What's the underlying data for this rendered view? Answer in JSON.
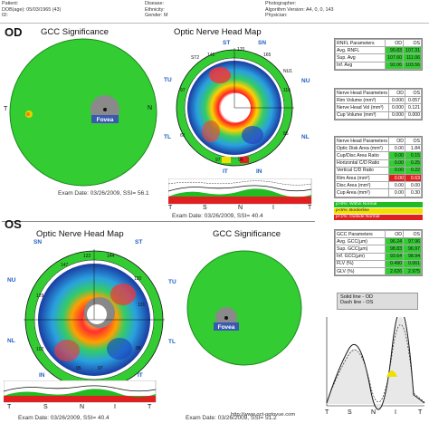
{
  "header": {
    "patient": "Patient:",
    "dob": "DOB(age): 05/03/1965 (43)",
    "id": "ID:",
    "disease": "Disease:",
    "ethnicity": "Ethnicity:",
    "gender": "Gender: M",
    "photographer": "Photographer:",
    "algorithm": "Algorithm Version: A4, 0, 0, 143",
    "physician": "Physician:"
  },
  "od": {
    "eye_label": "OD",
    "gcc_title": "GCC Significance",
    "onh_title": "Optic Nerve Head Map",
    "exam_date": "Exam Date: 03/26/2009, SSI= 56.1",
    "exam_date_map": "Exam Date: 03/26/2009, SSI= 40.4",
    "fovea": "Fovea",
    "orient_t": "T",
    "orient_n": "N",
    "sector_labels": [
      "ST",
      "S",
      "SN",
      "ST2",
      "SN1",
      "NU1",
      "NU2",
      "TU",
      "TU1",
      "TU2",
      "TL2",
      "NL1",
      "NL2",
      "IT1",
      "IN1",
      "IN",
      "IT",
      "TL1",
      "TL"
    ],
    "sector_values": [
      "141",
      "170",
      "165",
      "121",
      "124",
      "116",
      "97",
      "94",
      "61",
      "85",
      "109",
      "85",
      "87",
      "97",
      "80",
      "115"
    ],
    "quadrants": [
      "ST",
      "SN",
      "TU",
      "NU",
      "TL",
      "NL",
      "IT",
      "IN"
    ],
    "graph_axis": [
      "T",
      "S",
      "N",
      "I",
      "T"
    ]
  },
  "os": {
    "eye_label": "OS",
    "onh_title": "Optic Nerve Head Map",
    "gcc_title": "GCC Significance",
    "exam_date": "Exam Date: 03/26/2009, SSI= 40.4",
    "exam_date_gcc": "Exam Date: 03/26/2009, SSI= 51.2",
    "fovea": "Fovea",
    "sector_labels": [
      "SN",
      "SN1",
      "ST1",
      "ST",
      "NU",
      "NU1",
      "NU2",
      "TU",
      "TU1",
      "NL",
      "NL1",
      "TL",
      "IN1",
      "IN",
      "IT1",
      "IT"
    ],
    "sector_values": [
      "122",
      "144",
      "147",
      "120",
      "125",
      "129",
      "116",
      "131",
      "122",
      "102",
      "81",
      "88",
      "95",
      "97",
      "166"
    ],
    "quadrants": [
      "SN",
      "ST",
      "NU",
      "TU",
      "NL",
      "TL",
      "IN",
      "IT"
    ],
    "graph_axis": [
      "T",
      "S",
      "N",
      "I",
      "T"
    ]
  },
  "rnfl_table": {
    "headers": [
      "RNFL Parameters",
      "OD",
      "OS"
    ],
    "rows": [
      {
        "label": "Avg. RNFL",
        "od": "99.83",
        "os": "107.31"
      },
      {
        "label": "Sup. Avg",
        "od": "107.60",
        "os": "111.06"
      },
      {
        "label": "Inf. Avg",
        "od": "92.06",
        "os": "103.56"
      }
    ]
  },
  "nh_table": {
    "headers": [
      "Nerve Head Parameters",
      "OD",
      "OS"
    ],
    "rows": [
      {
        "label": "Rim Volume (mm³)",
        "od": "0.000",
        "os": "0.057"
      },
      {
        "label": "Nerve Head Vol (mm³)",
        "od": "0.000",
        "os": "0.121"
      },
      {
        "label": "Cup Volume (mm³)",
        "od": "0.000",
        "os": "0.000"
      }
    ]
  },
  "disc_table": {
    "headers": [
      "Nerve Head Parameters",
      "OD",
      "OS"
    ],
    "rows": [
      {
        "label": "Optic Disk Area (mm²)",
        "od": "0.00",
        "os": "1.84"
      },
      {
        "label": "Cup/Disc Area Ratio",
        "od": "0.00",
        "os": "0.15"
      },
      {
        "label": "Horizontal C/D Ratio",
        "od": "0.00",
        "os": "0.25"
      },
      {
        "label": "Vertical C/D Ratio",
        "od": "0.00",
        "os": "0.22"
      },
      {
        "label": "Rim Area (mm²)",
        "od": "0.00",
        "os": "0.63"
      },
      {
        "label": "Disc Area (mm²)",
        "od": "0.00",
        "os": "0.00"
      },
      {
        "label": "Cup Area (mm²)",
        "od": "0.00",
        "os": "0.30"
      }
    ]
  },
  "legend": {
    "within": "p>5%: Within Normal",
    "borderline": "p<5%: Borderline",
    "outside": "p<1%: Outside Normal"
  },
  "gcc_table": {
    "headers": [
      "GCC Parameters",
      "OD",
      "OS"
    ],
    "rows": [
      {
        "label": "Avg. GCC(µm)",
        "od": "96.24",
        "os": "97.96"
      },
      {
        "label": "Sup. GCC(µm)",
        "od": "98.83",
        "os": "96.97"
      },
      {
        "label": "Inf. GCC(µm)",
        "od": "93.64",
        "os": "98.94"
      },
      {
        "label": "FLV (%)",
        "od": "0.490",
        "os": "0.061"
      },
      {
        "label": "GLV (%)",
        "od": "2.626",
        "os": "2.975"
      }
    ]
  },
  "line_legend": {
    "solid": "Solid line - OD",
    "dash": "Dash line - OS"
  },
  "bottom_graph_axis": [
    "T",
    "S",
    "N",
    "I",
    "T"
  ],
  "url": "http://www.oct-optovue.com"
}
